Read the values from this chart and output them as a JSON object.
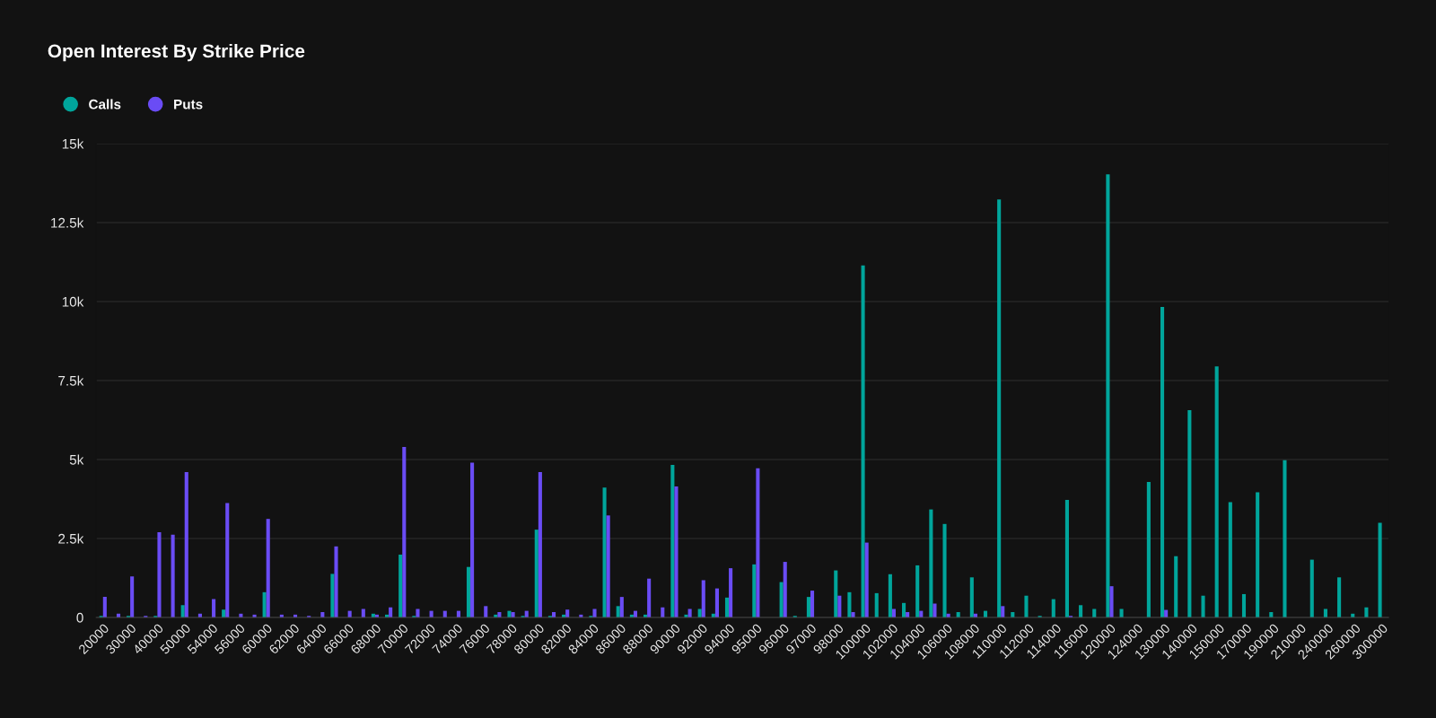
{
  "chart_data": {
    "type": "bar",
    "title": "Open Interest By Strike Price",
    "categories": [
      "20000",
      null,
      "30000",
      null,
      "40000",
      null,
      "50000",
      null,
      "54000",
      null,
      "56000",
      null,
      "60000",
      null,
      "62000",
      null,
      "64000",
      null,
      "66000",
      null,
      "68000",
      null,
      "70000",
      null,
      "72000",
      null,
      "74000",
      null,
      "76000",
      null,
      "78000",
      null,
      "80000",
      null,
      "82000",
      null,
      "84000",
      null,
      "86000",
      null,
      "88000",
      null,
      "90000",
      null,
      "92000",
      null,
      "94000",
      null,
      "95000",
      null,
      "96000",
      null,
      "97000",
      null,
      "98000",
      null,
      "100000",
      null,
      "102000",
      null,
      "104000",
      null,
      "106000",
      null,
      "108000",
      null,
      "110000",
      null,
      "112000",
      null,
      "114000",
      null,
      "116000",
      null,
      "120000",
      null,
      "124000",
      null,
      "130000",
      null,
      "140000",
      null,
      "150000",
      null,
      "170000",
      null,
      "190000",
      null,
      "210000",
      null,
      "240000",
      null,
      "260000",
      null,
      "300000"
    ],
    "series": [
      {
        "name": "Calls",
        "color": "#00a59b",
        "values": [
          50,
          0,
          50,
          0,
          50,
          0,
          390,
          0,
          0,
          250,
          0,
          0,
          800,
          0,
          0,
          0,
          0,
          1380,
          0,
          0,
          120,
          90,
          1990,
          50,
          0,
          0,
          0,
          1600,
          0,
          90,
          210,
          50,
          2780,
          50,
          90,
          0,
          50,
          4110,
          360,
          90,
          90,
          0,
          4830,
          90,
          270,
          120,
          630,
          0,
          1680,
          0,
          1120,
          50,
          650,
          0,
          1490,
          800,
          11140,
          770,
          1370,
          460,
          1650,
          3420,
          2960,
          170,
          1270,
          210,
          13230,
          170,
          690,
          50,
          580,
          3720,
          390,
          270,
          14030,
          270,
          0,
          4290,
          9830,
          1940,
          6560,
          690,
          7950,
          3650,
          740,
          3960,
          170,
          4980,
          0,
          1830,
          270,
          1270,
          120,
          320,
          3000
        ]
      },
      {
        "name": "Puts",
        "color": "#6a4cf5",
        "values": [
          650,
          120,
          1300,
          50,
          2700,
          2620,
          4600,
          120,
          580,
          3620,
          120,
          90,
          3120,
          90,
          90,
          50,
          170,
          2250,
          210,
          270,
          90,
          320,
          5400,
          270,
          210,
          210,
          210,
          4900,
          360,
          170,
          170,
          210,
          4600,
          170,
          250,
          90,
          270,
          3230,
          650,
          210,
          1230,
          320,
          4150,
          270,
          1180,
          920,
          1560,
          0,
          4720,
          0,
          1760,
          0,
          850,
          0,
          690,
          170,
          2370,
          0,
          270,
          170,
          210,
          440,
          120,
          0,
          120,
          0,
          360,
          0,
          0,
          0,
          0,
          50,
          0,
          0,
          990,
          0,
          0,
          0,
          240,
          0,
          0,
          0,
          0,
          0,
          0,
          0,
          0,
          0,
          0,
          0,
          0,
          0,
          0,
          0,
          0
        ]
      }
    ],
    "ylim": [
      0,
      15000
    ],
    "yticks": [
      0,
      {
        "value": 2500,
        "label": "2.5k"
      },
      {
        "value": 5000,
        "label": "5k"
      },
      {
        "value": 7500,
        "label": "7.5k"
      },
      {
        "value": 10000,
        "label": "10k"
      },
      {
        "value": 12500,
        "label": "12.5k"
      },
      {
        "value": 15000,
        "label": "15k"
      }
    ],
    "grid": "y",
    "legend": "top left"
  }
}
